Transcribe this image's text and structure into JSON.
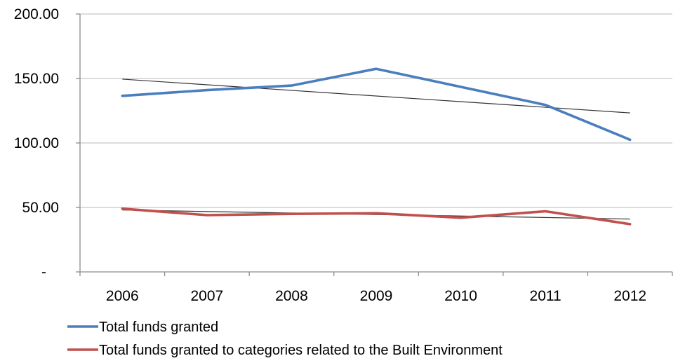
{
  "chart_data": {
    "type": "line",
    "categories": [
      "2006",
      "2007",
      "2008",
      "2009",
      "2010",
      "2011",
      "2012"
    ],
    "series": [
      {
        "name": "Total funds granted",
        "values": [
          136.5,
          141.0,
          144.5,
          157.5,
          143.5,
          129.5,
          102.5
        ],
        "color": "#4a7ebf"
      },
      {
        "name": "Total funds granted to categories related to the Built Environment",
        "values": [
          49.0,
          44.0,
          45.0,
          45.5,
          42.0,
          47.0,
          37.0
        ],
        "color": "#c0504d"
      }
    ],
    "trendlines": [
      {
        "series": "Total funds granted",
        "values": [
          149.5,
          123.3
        ],
        "color": "#333333"
      },
      {
        "series": "Total funds granted to categories related to the Built Environment",
        "values": [
          48.0,
          41.0
        ],
        "color": "#333333"
      }
    ],
    "yticks": [
      "-",
      "50.00",
      "100.00",
      "150.00",
      "200.00"
    ],
    "ylim": [
      0,
      200
    ],
    "grid": true,
    "legend_position": "bottom-left"
  }
}
